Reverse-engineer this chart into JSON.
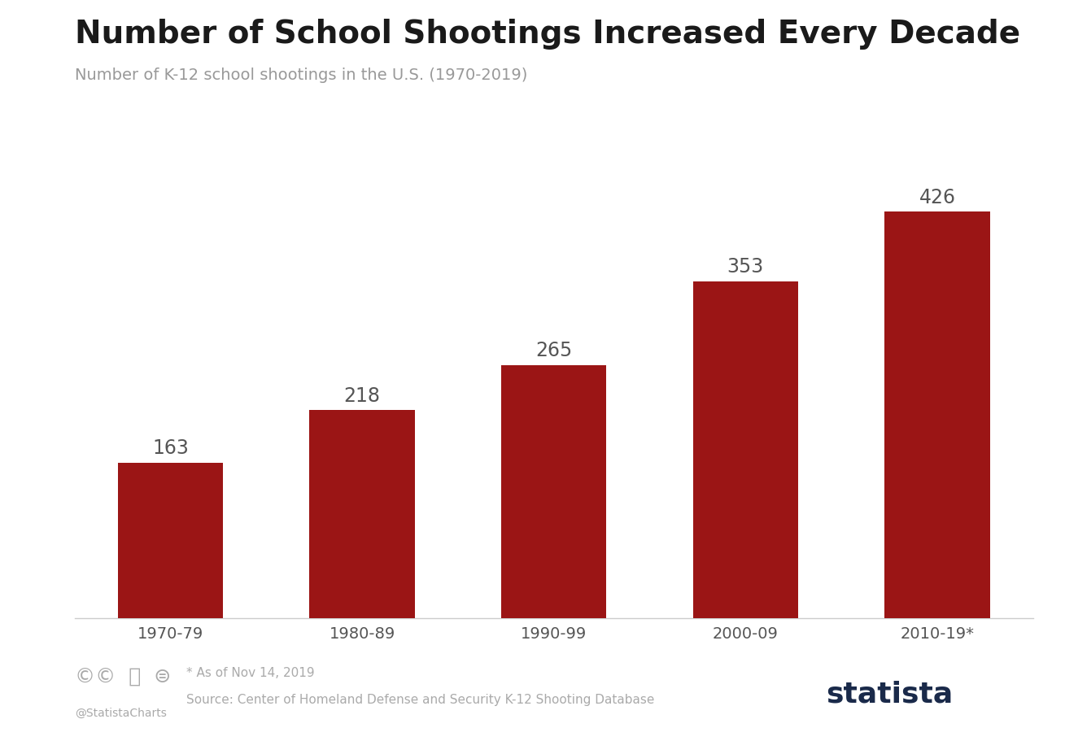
{
  "title": "Number of School Shootings Increased Every Decade",
  "subtitle": "Number of K-12 school shootings in the U.S. (1970-2019)",
  "categories": [
    "1970-79",
    "1980-89",
    "1990-99",
    "2000-09",
    "2010-19*"
  ],
  "values": [
    163,
    218,
    265,
    353,
    426
  ],
  "bar_color": "#9B1515",
  "background_color": "#ffffff",
  "chart_bg_color": "#ffffff",
  "title_fontsize": 28,
  "subtitle_fontsize": 14,
  "label_fontsize": 17,
  "tick_fontsize": 14,
  "title_color": "#1a1a1a",
  "subtitle_color": "#999999",
  "label_color": "#555555",
  "tick_color": "#555555",
  "footnote_line1": "* As of Nov 14, 2019",
  "footnote_line2": "Source: Center of Homeland Defense and Security K-12 Shooting Database",
  "footnote_left": "@StatistaCharts",
  "statista_text": "statista",
  "statista_color": "#1a2a4a",
  "ylim": [
    0,
    490
  ],
  "bar_width": 0.55
}
